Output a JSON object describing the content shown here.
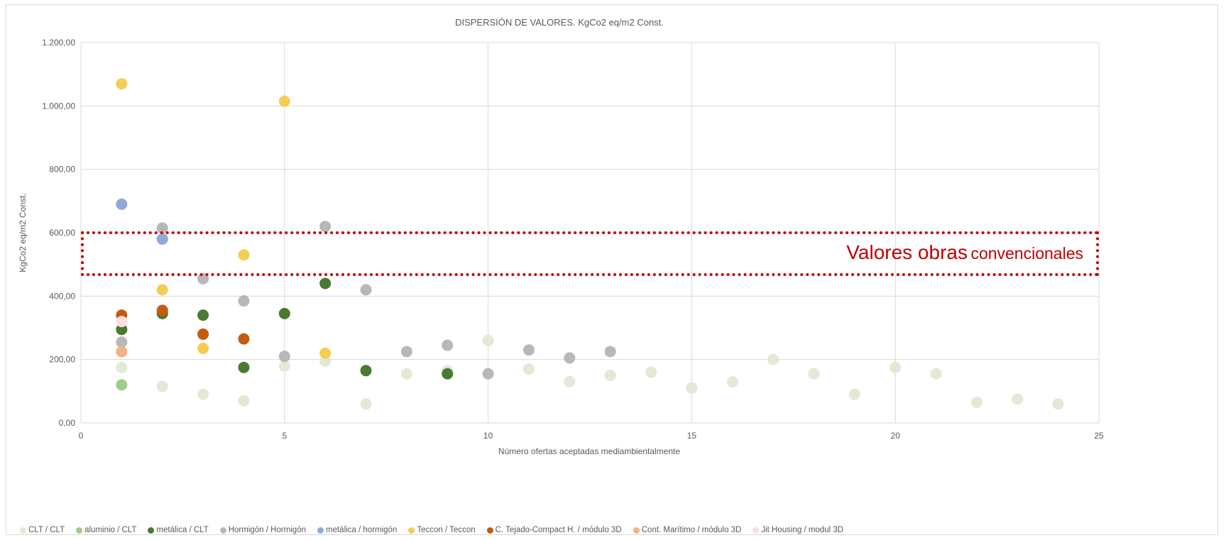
{
  "chart_data": {
    "type": "scatter",
    "title": "DISPERSIÓN DE VALORES. KgCo2 eq/m2 Const.",
    "xlabel": "Número ofertas aceptadas mediambientalmente",
    "ylabel": "KgCo2 eq/m2 Const.",
    "xlim": [
      0,
      25
    ],
    "ylim": [
      0,
      1200
    ],
    "xticks": [
      "0",
      "5",
      "10",
      "15",
      "20",
      "25"
    ],
    "yticks": [
      "0,00",
      "200,00",
      "400,00",
      "600,00",
      "800,00",
      "1.000,00",
      "1.200,00"
    ],
    "grid": true,
    "legend_position": "bottom",
    "series": [
      {
        "name": "CLT / CLT",
        "color": "#e2e9d4",
        "points": [
          [
            1,
            175
          ],
          [
            2,
            115
          ],
          [
            3,
            90
          ],
          [
            4,
            70
          ],
          [
            5,
            180
          ],
          [
            6,
            195
          ],
          [
            7,
            60
          ],
          [
            8,
            155
          ],
          [
            9,
            165
          ],
          [
            10,
            155
          ],
          [
            11,
            170
          ],
          [
            12,
            130
          ],
          [
            13,
            150
          ],
          [
            14,
            160
          ],
          [
            15,
            110
          ],
          [
            16,
            130
          ],
          [
            17,
            200
          ],
          [
            18,
            155
          ],
          [
            19,
            90
          ],
          [
            20,
            175
          ],
          [
            21,
            155
          ],
          [
            22,
            65
          ],
          [
            23,
            75
          ],
          [
            24,
            60
          ],
          [
            10,
            260
          ]
        ]
      },
      {
        "name": "aluminio / CLT",
        "color": "#9fcd8a",
        "points": [
          [
            1,
            120
          ]
        ]
      },
      {
        "name": "metálica / CLT",
        "color": "#4a7a32",
        "points": [
          [
            1,
            295
          ],
          [
            2,
            345
          ],
          [
            3,
            340
          ],
          [
            4,
            175
          ],
          [
            5,
            345
          ],
          [
            6,
            440
          ],
          [
            7,
            165
          ],
          [
            9,
            155
          ]
        ]
      },
      {
        "name": "Hormigón / Hormigón",
        "color": "#b8b8b8",
        "points": [
          [
            1,
            255
          ],
          [
            2,
            615
          ],
          [
            3,
            455
          ],
          [
            4,
            385
          ],
          [
            5,
            210
          ],
          [
            6,
            620
          ],
          [
            7,
            420
          ],
          [
            8,
            225
          ],
          [
            9,
            245
          ],
          [
            10,
            155
          ],
          [
            11,
            230
          ],
          [
            12,
            205
          ],
          [
            13,
            225
          ]
        ]
      },
      {
        "name": "metálica / hormigón",
        "color": "#8eaadb",
        "points": [
          [
            1,
            690
          ],
          [
            2,
            580
          ]
        ]
      },
      {
        "name": "Teccon / Teccon",
        "color": "#f5cd52",
        "points": [
          [
            1,
            1070
          ],
          [
            2,
            420
          ],
          [
            3,
            235
          ],
          [
            4,
            530
          ],
          [
            5,
            1015
          ],
          [
            6,
            220
          ]
        ]
      },
      {
        "name": "C. Tejado-Compact H. / módulo 3D",
        "color": "#c55a11",
        "points": [
          [
            1,
            340
          ],
          [
            2,
            355
          ],
          [
            3,
            280
          ],
          [
            4,
            265
          ]
        ]
      },
      {
        "name": "Cont. Marítimo / módulo 3D",
        "color": "#f4b183",
        "points": [
          [
            1,
            225
          ]
        ]
      },
      {
        "name": "Jit Housing / modul 3D",
        "color": "#fbe0dd",
        "points": [
          [
            1,
            320
          ]
        ]
      }
    ]
  },
  "annotation": {
    "label_main": "Valores obras",
    "label_small": "convencionales",
    "color": "#c00000"
  }
}
